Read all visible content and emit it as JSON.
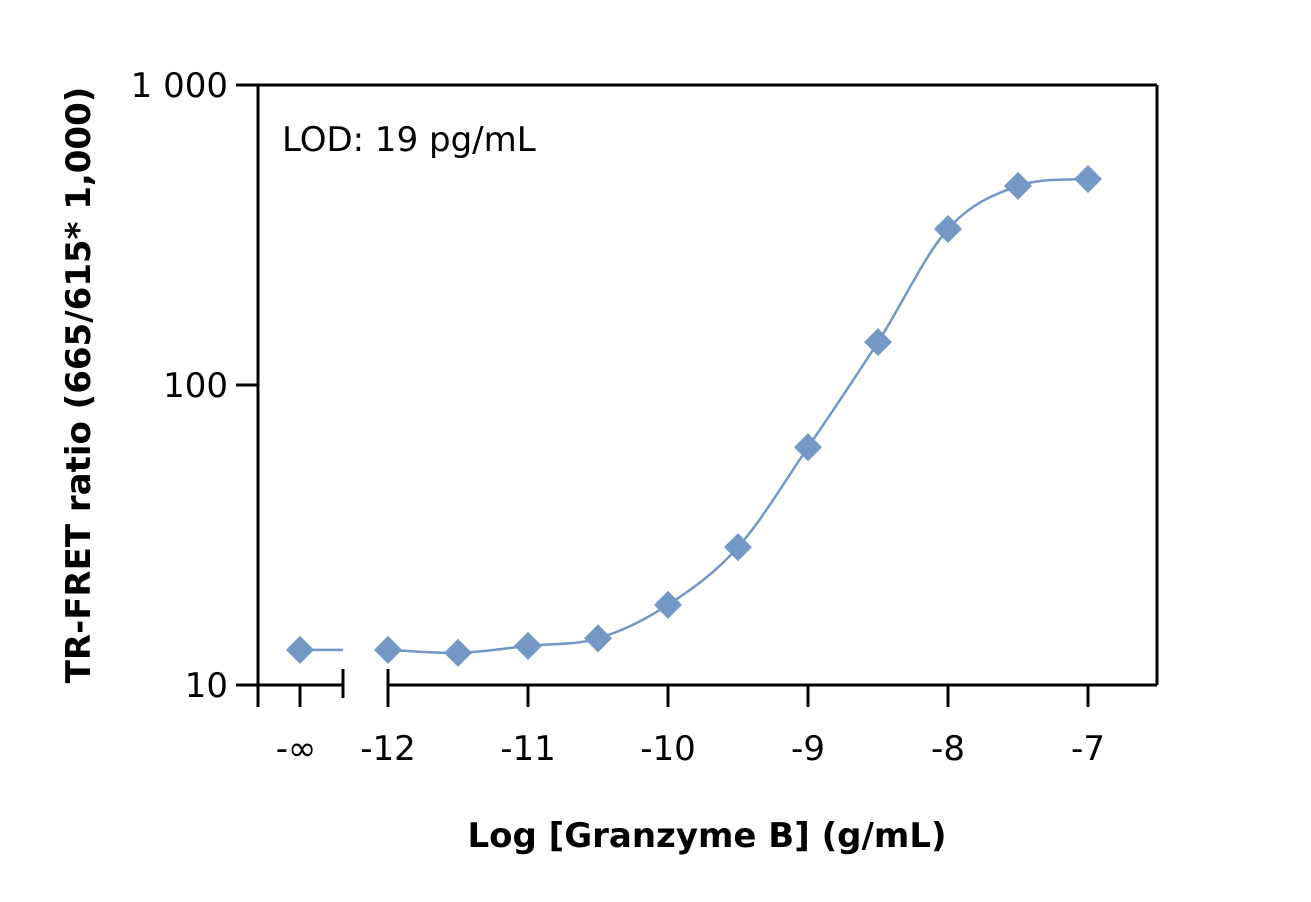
{
  "chart_data": {
    "type": "scatter",
    "xlabel": "Log [Granzyme B] (g/mL)",
    "ylabel": "TR-FRET ratio (665/615* 1,000)",
    "annotation": "LOD: 19 pg/mL",
    "y_scale": "log",
    "ylim": [
      10,
      1000
    ],
    "xlim": [
      -12.93,
      -6.5
    ],
    "y_ticks": [
      10,
      100,
      1000
    ],
    "y_tick_labels": [
      "10",
      "100",
      "1 000"
    ],
    "x_ticks": [
      -12,
      -11,
      -10,
      -9,
      -8,
      -7
    ],
    "x_tick_labels": [
      "-12",
      "-11",
      "-10",
      "-9",
      "-8",
      "-7"
    ],
    "x_break_label": "-∞",
    "grid": false,
    "marker": "diamond",
    "color": "#7398c6",
    "zero_point": {
      "x": "-∞",
      "y": 13.1
    },
    "points": [
      {
        "x": -12,
        "y": 13.1
      },
      {
        "x": -11.5,
        "y": 12.8
      },
      {
        "x": -11,
        "y": 13.5
      },
      {
        "x": -10.5,
        "y": 14.3
      },
      {
        "x": -10,
        "y": 18.5
      },
      {
        "x": -9.5,
        "y": 28.8
      },
      {
        "x": -9,
        "y": 62
      },
      {
        "x": -8.5,
        "y": 139
      },
      {
        "x": -8,
        "y": 331
      },
      {
        "x": -7.5,
        "y": 461
      },
      {
        "x": -7,
        "y": 486
      }
    ]
  }
}
